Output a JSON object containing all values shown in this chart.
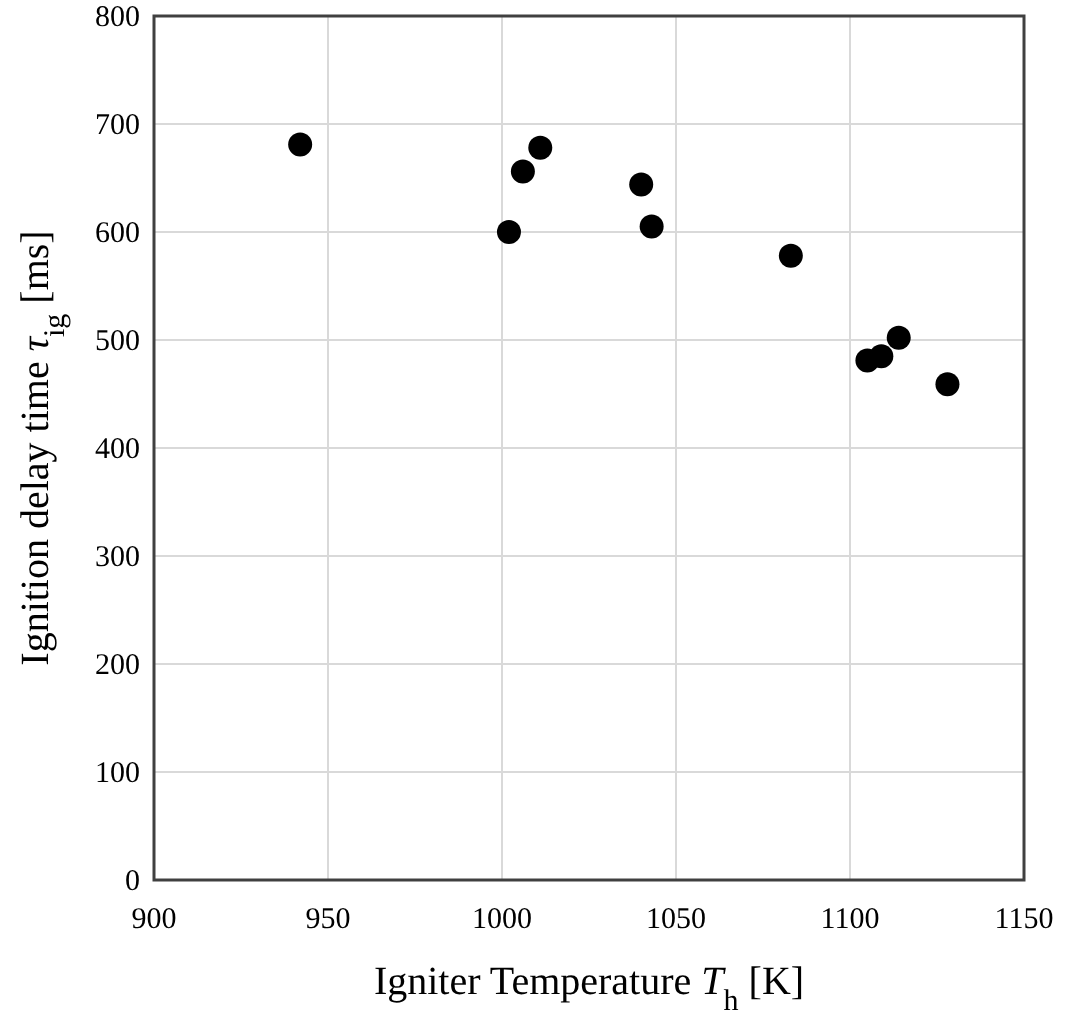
{
  "chart_data": {
    "type": "scatter",
    "xlabel": "Igniter Temperature T$_{h}$ [K]",
    "ylabel": "Ignition delay time τ$_{ig}$ [ms]",
    "x": [
      942,
      1002,
      1006,
      1011,
      1040,
      1043,
      1083,
      1105,
      1109,
      1114,
      1128
    ],
    "series": [
      {
        "color": "#000000",
        "values": [
          681,
          600,
          656,
          678,
          644,
          605,
          578,
          481,
          485,
          502,
          459
        ]
      }
    ],
    "xlim": [
      900,
      1150
    ],
    "xticks": [
      900,
      950,
      1000,
      1050,
      1100,
      1150
    ],
    "ylim": [
      0,
      800
    ],
    "yticks": [
      0,
      100,
      200,
      300,
      400,
      500,
      600,
      700,
      800
    ],
    "grid": true,
    "marker": "circle"
  }
}
